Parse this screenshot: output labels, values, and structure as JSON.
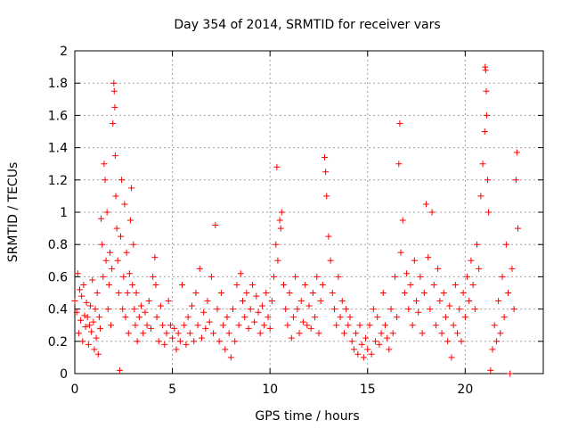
{
  "chart_data": {
    "type": "scatter",
    "title": "Day 354 of 2014, SRMTID for receiver vars",
    "xlabel": "GPS time / hours",
    "ylabel": "SRMTID / TECUs",
    "xlim": [
      0,
      24
    ],
    "ylim": [
      0,
      2
    ],
    "xticks": [
      0,
      5,
      10,
      15,
      20
    ],
    "yticks": [
      0,
      0.2,
      0.4,
      0.6,
      0.8,
      1,
      1.2,
      1.4,
      1.6,
      1.8,
      2
    ],
    "xtick_labels": [
      "0",
      "5",
      "10",
      "15",
      "20"
    ],
    "ytick_labels": [
      "0",
      "0.2",
      "0.4",
      "0.6",
      "0.8",
      "1",
      "1.2",
      "1.4",
      "1.6",
      "1.8",
      "2"
    ],
    "grid": true,
    "marker": "+",
    "series": [
      {
        "name": "SRMTID",
        "color": "#ff0000",
        "points": [
          [
            0.0,
            0.45
          ],
          [
            0.1,
            0.38
          ],
          [
            0.15,
            0.62
          ],
          [
            0.2,
            0.25
          ],
          [
            0.25,
            0.52
          ],
          [
            0.3,
            0.33
          ],
          [
            0.35,
            0.48
          ],
          [
            0.4,
            0.2
          ],
          [
            0.45,
            0.55
          ],
          [
            0.5,
            0.36
          ],
          [
            0.55,
            0.29
          ],
          [
            0.6,
            0.44
          ],
          [
            0.65,
            0.35
          ],
          [
            0.7,
            0.18
          ],
          [
            0.75,
            0.3
          ],
          [
            0.8,
            0.42
          ],
          [
            0.85,
            0.26
          ],
          [
            0.9,
            0.58
          ],
          [
            0.95,
            0.32
          ],
          [
            1.0,
            0.15
          ],
          [
            1.05,
            0.4
          ],
          [
            1.1,
            0.22
          ],
          [
            1.15,
            0.5
          ],
          [
            1.2,
            0.12
          ],
          [
            1.25,
            0.35
          ],
          [
            1.3,
            0.28
          ],
          [
            1.35,
            0.96
          ],
          [
            1.4,
            0.8
          ],
          [
            1.45,
            0.6
          ],
          [
            1.5,
            1.3
          ],
          [
            1.55,
            1.2
          ],
          [
            1.6,
            0.7
          ],
          [
            1.65,
            1.0
          ],
          [
            1.7,
            0.4
          ],
          [
            1.75,
            0.55
          ],
          [
            1.8,
            0.75
          ],
          [
            1.85,
            0.3
          ],
          [
            1.9,
            0.65
          ],
          [
            1.95,
            1.55
          ],
          [
            2.0,
            1.8
          ],
          [
            2.02,
            1.75
          ],
          [
            2.05,
            1.65
          ],
          [
            2.07,
            1.35
          ],
          [
            2.1,
            1.1
          ],
          [
            2.15,
            0.9
          ],
          [
            2.2,
            0.7
          ],
          [
            2.25,
            0.5
          ],
          [
            2.3,
            0.02
          ],
          [
            2.35,
            0.85
          ],
          [
            2.4,
            1.2
          ],
          [
            2.45,
            0.4
          ],
          [
            2.5,
            0.6
          ],
          [
            2.55,
            1.05
          ],
          [
            2.6,
            0.35
          ],
          [
            2.65,
            0.75
          ],
          [
            2.7,
            0.5
          ],
          [
            2.75,
            0.25
          ],
          [
            2.8,
            0.62
          ],
          [
            2.85,
            0.95
          ],
          [
            2.9,
            1.15
          ],
          [
            2.95,
            0.55
          ],
          [
            3.0,
            0.8
          ],
          [
            3.05,
            0.4
          ],
          [
            3.1,
            0.3
          ],
          [
            3.15,
            0.5
          ],
          [
            3.2,
            0.2
          ],
          [
            3.3,
            0.35
          ],
          [
            3.4,
            0.42
          ],
          [
            3.5,
            0.25
          ],
          [
            3.6,
            0.38
          ],
          [
            3.7,
            0.3
          ],
          [
            3.8,
            0.45
          ],
          [
            3.9,
            0.28
          ],
          [
            4.0,
            0.6
          ],
          [
            4.1,
            0.72
          ],
          [
            4.15,
            0.55
          ],
          [
            4.2,
            0.35
          ],
          [
            4.3,
            0.2
          ],
          [
            4.4,
            0.42
          ],
          [
            4.5,
            0.3
          ],
          [
            4.6,
            0.18
          ],
          [
            4.7,
            0.25
          ],
          [
            4.8,
            0.45
          ],
          [
            4.9,
            0.3
          ],
          [
            5.0,
            0.22
          ],
          [
            5.1,
            0.28
          ],
          [
            5.2,
            0.15
          ],
          [
            5.3,
            0.25
          ],
          [
            5.4,
            0.2
          ],
          [
            5.5,
            0.55
          ],
          [
            5.6,
            0.3
          ],
          [
            5.7,
            0.18
          ],
          [
            5.8,
            0.35
          ],
          [
            5.9,
            0.25
          ],
          [
            6.0,
            0.42
          ],
          [
            6.1,
            0.2
          ],
          [
            6.2,
            0.5
          ],
          [
            6.3,
            0.3
          ],
          [
            6.4,
            0.65
          ],
          [
            6.5,
            0.22
          ],
          [
            6.6,
            0.38
          ],
          [
            6.7,
            0.28
          ],
          [
            6.8,
            0.45
          ],
          [
            6.9,
            0.32
          ],
          [
            7.0,
            0.6
          ],
          [
            7.1,
            0.25
          ],
          [
            7.2,
            0.92
          ],
          [
            7.3,
            0.4
          ],
          [
            7.4,
            0.2
          ],
          [
            7.5,
            0.5
          ],
          [
            7.6,
            0.3
          ],
          [
            7.7,
            0.15
          ],
          [
            7.8,
            0.35
          ],
          [
            7.9,
            0.25
          ],
          [
            8.0,
            0.1
          ],
          [
            8.1,
            0.4
          ],
          [
            8.2,
            0.2
          ],
          [
            8.3,
            0.55
          ],
          [
            8.4,
            0.3
          ],
          [
            8.5,
            0.62
          ],
          [
            8.6,
            0.45
          ],
          [
            8.7,
            0.35
          ],
          [
            8.8,
            0.5
          ],
          [
            8.9,
            0.28
          ],
          [
            9.0,
            0.4
          ],
          [
            9.1,
            0.55
          ],
          [
            9.2,
            0.32
          ],
          [
            9.3,
            0.48
          ],
          [
            9.4,
            0.38
          ],
          [
            9.5,
            0.25
          ],
          [
            9.6,
            0.42
          ],
          [
            9.7,
            0.3
          ],
          [
            9.8,
            0.5
          ],
          [
            9.9,
            0.35
          ],
          [
            10.0,
            0.28
          ],
          [
            10.1,
            0.45
          ],
          [
            10.2,
            0.6
          ],
          [
            10.3,
            0.8
          ],
          [
            10.35,
            1.28
          ],
          [
            10.4,
            0.7
          ],
          [
            10.5,
            0.95
          ],
          [
            10.55,
            0.9
          ],
          [
            10.6,
            1.0
          ],
          [
            10.7,
            0.55
          ],
          [
            10.8,
            0.4
          ],
          [
            10.9,
            0.3
          ],
          [
            11.0,
            0.5
          ],
          [
            11.1,
            0.22
          ],
          [
            11.2,
            0.35
          ],
          [
            11.3,
            0.6
          ],
          [
            11.4,
            0.4
          ],
          [
            11.5,
            0.25
          ],
          [
            11.6,
            0.45
          ],
          [
            11.7,
            0.32
          ],
          [
            11.8,
            0.55
          ],
          [
            11.9,
            0.3
          ],
          [
            12.0,
            0.42
          ],
          [
            12.1,
            0.28
          ],
          [
            12.2,
            0.5
          ],
          [
            12.3,
            0.35
          ],
          [
            12.4,
            0.6
          ],
          [
            12.5,
            0.25
          ],
          [
            12.6,
            0.45
          ],
          [
            12.7,
            0.55
          ],
          [
            12.8,
            1.34
          ],
          [
            12.85,
            1.25
          ],
          [
            12.9,
            1.1
          ],
          [
            13.0,
            0.85
          ],
          [
            13.1,
            0.7
          ],
          [
            13.2,
            0.5
          ],
          [
            13.3,
            0.4
          ],
          [
            13.4,
            0.3
          ],
          [
            13.5,
            0.6
          ],
          [
            13.6,
            0.35
          ],
          [
            13.7,
            0.45
          ],
          [
            13.8,
            0.25
          ],
          [
            13.9,
            0.4
          ],
          [
            14.0,
            0.3
          ],
          [
            14.1,
            0.35
          ],
          [
            14.2,
            0.2
          ],
          [
            14.3,
            0.15
          ],
          [
            14.4,
            0.25
          ],
          [
            14.5,
            0.12
          ],
          [
            14.6,
            0.3
          ],
          [
            14.7,
            0.18
          ],
          [
            14.8,
            0.1
          ],
          [
            14.9,
            0.22
          ],
          [
            15.0,
            0.15
          ],
          [
            15.1,
            0.3
          ],
          [
            15.2,
            0.12
          ],
          [
            15.3,
            0.4
          ],
          [
            15.4,
            0.2
          ],
          [
            15.5,
            0.35
          ],
          [
            15.6,
            0.18
          ],
          [
            15.7,
            0.25
          ],
          [
            15.8,
            0.5
          ],
          [
            15.9,
            0.3
          ],
          [
            16.0,
            0.22
          ],
          [
            16.1,
            0.15
          ],
          [
            16.2,
            0.4
          ],
          [
            16.3,
            0.25
          ],
          [
            16.4,
            0.6
          ],
          [
            16.5,
            0.35
          ],
          [
            16.6,
            1.3
          ],
          [
            16.65,
            1.55
          ],
          [
            16.7,
            0.75
          ],
          [
            16.8,
            0.95
          ],
          [
            16.9,
            0.5
          ],
          [
            17.0,
            0.62
          ],
          [
            17.1,
            0.4
          ],
          [
            17.2,
            0.55
          ],
          [
            17.3,
            0.3
          ],
          [
            17.4,
            0.7
          ],
          [
            17.5,
            0.45
          ],
          [
            17.6,
            0.38
          ],
          [
            17.7,
            0.6
          ],
          [
            17.8,
            0.25
          ],
          [
            17.9,
            0.5
          ],
          [
            18.0,
            1.05
          ],
          [
            18.1,
            0.72
          ],
          [
            18.2,
            0.4
          ],
          [
            18.3,
            1.0
          ],
          [
            18.4,
            0.55
          ],
          [
            18.5,
            0.3
          ],
          [
            18.6,
            0.65
          ],
          [
            18.7,
            0.45
          ],
          [
            18.8,
            0.25
          ],
          [
            18.9,
            0.5
          ],
          [
            19.0,
            0.35
          ],
          [
            19.1,
            0.2
          ],
          [
            19.2,
            0.42
          ],
          [
            19.3,
            0.1
          ],
          [
            19.4,
            0.3
          ],
          [
            19.5,
            0.55
          ],
          [
            19.6,
            0.25
          ],
          [
            19.7,
            0.4
          ],
          [
            19.8,
            0.2
          ],
          [
            19.9,
            0.5
          ],
          [
            20.0,
            0.35
          ],
          [
            20.1,
            0.6
          ],
          [
            20.2,
            0.45
          ],
          [
            20.3,
            0.7
          ],
          [
            20.4,
            0.55
          ],
          [
            20.5,
            0.4
          ],
          [
            20.6,
            0.8
          ],
          [
            20.7,
            0.65
          ],
          [
            20.8,
            1.1
          ],
          [
            20.9,
            1.3
          ],
          [
            21.0,
            1.5
          ],
          [
            21.02,
            1.9
          ],
          [
            21.05,
            1.88
          ],
          [
            21.08,
            1.75
          ],
          [
            21.1,
            1.6
          ],
          [
            21.15,
            1.2
          ],
          [
            21.2,
            1.0
          ],
          [
            21.3,
            0.02
          ],
          [
            21.4,
            0.15
          ],
          [
            21.5,
            0.3
          ],
          [
            21.6,
            0.2
          ],
          [
            21.7,
            0.45
          ],
          [
            21.8,
            0.25
          ],
          [
            21.9,
            0.6
          ],
          [
            22.0,
            0.35
          ],
          [
            22.1,
            0.8
          ],
          [
            22.2,
            0.5
          ],
          [
            22.3,
            0.0
          ],
          [
            22.4,
            0.65
          ],
          [
            22.5,
            0.4
          ],
          [
            22.6,
            1.2
          ],
          [
            22.65,
            1.37
          ],
          [
            22.7,
            0.9
          ]
        ]
      }
    ]
  }
}
